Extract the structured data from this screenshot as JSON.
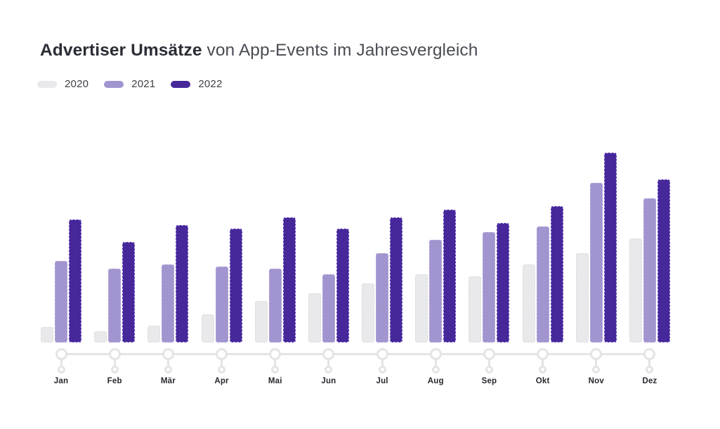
{
  "header": {
    "title_bold": "Advertiser Umsätze",
    "title_rest": " von App-Events im Jahresvergleich"
  },
  "legend": {
    "position": "top-left",
    "items": [
      {
        "label": "2020",
        "color": "#e9e8ea",
        "border": "#dddce0"
      },
      {
        "label": "2021",
        "color": "#a295cf",
        "border": "#b9aedd"
      },
      {
        "label": "2022",
        "color": "#46289b",
        "border": "#c5b8ea"
      }
    ]
  },
  "chart_data": {
    "type": "bar",
    "title": "Advertiser Umsätze von App-Events im Jahresvergleich",
    "categories": [
      "Jan",
      "Feb",
      "Mär",
      "Apr",
      "Mai",
      "Jun",
      "Jul",
      "Aug",
      "Sep",
      "Okt",
      "Nov",
      "Dez"
    ],
    "series": [
      {
        "name": "2020",
        "color": "#e9e8ea",
        "values": [
          8,
          6,
          9,
          15,
          22,
          26,
          31,
          36,
          35,
          41,
          47,
          55
        ]
      },
      {
        "name": "2021",
        "color": "#a295cf",
        "values": [
          43,
          39,
          41,
          40,
          39,
          36,
          47,
          54,
          58,
          61,
          84,
          76
        ]
      },
      {
        "name": "2022",
        "color": "#46289b",
        "values": [
          65,
          53,
          62,
          60,
          66,
          60,
          66,
          70,
          63,
          72,
          100,
          86
        ]
      }
    ],
    "xlabel": "",
    "ylabel": "",
    "ylim": [
      0,
      100
    ],
    "value_scale": "relative units estimated from bar heights (tallest bar = 100); no y-axis shown",
    "grid": false,
    "legend_position": "top-left",
    "x_axis_style": "timeline with circular nodes per month"
  }
}
